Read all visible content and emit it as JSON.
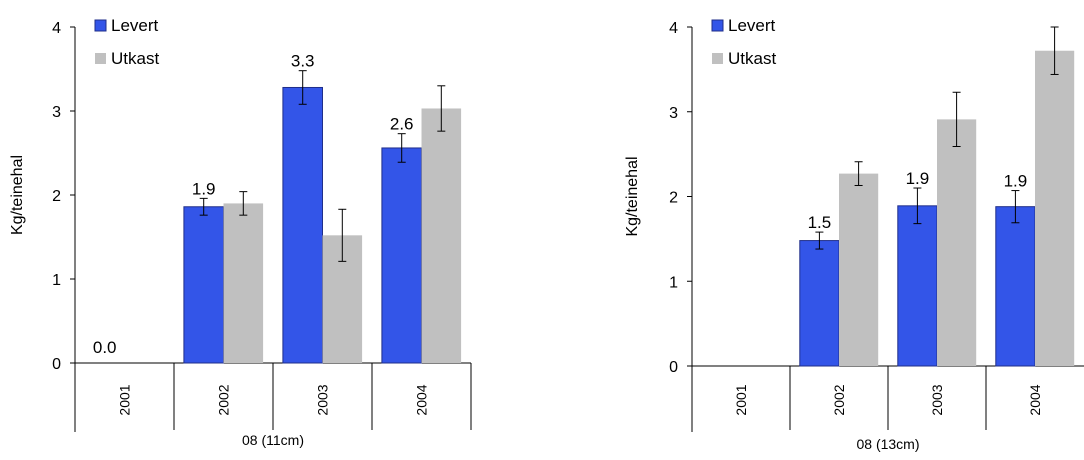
{
  "colors": {
    "levert": "#3355e8",
    "utkast": "#c0c0c0"
  },
  "chart_data": [
    {
      "type": "bar",
      "title": "",
      "xlabel": "08 (11cm)",
      "ylabel": "Kg/teinehal",
      "ylim": [
        0,
        4
      ],
      "yticks": [
        "0",
        "1",
        "2",
        "3",
        "4"
      ],
      "categories": [
        "2001",
        "2002",
        "2003",
        "2004"
      ],
      "legend_position": "top-left",
      "series": [
        {
          "name": "Levert",
          "values": [
            0,
            1.86,
            3.28,
            2.56
          ],
          "errors": [
            0,
            0.1,
            0.2,
            0.17
          ],
          "labels": [
            "0.0",
            "1.9",
            "3.3",
            "2.6"
          ]
        },
        {
          "name": "Utkast",
          "values": [
            null,
            1.9,
            1.52,
            3.03
          ],
          "errors": [
            null,
            0.14,
            0.31,
            0.27
          ]
        }
      ]
    },
    {
      "type": "bar",
      "title": "",
      "xlabel": "08 (13cm)",
      "ylabel": "Kg/teinehal",
      "ylim": [
        0,
        4
      ],
      "yticks": [
        "0",
        "1",
        "2",
        "3",
        "4"
      ],
      "categories": [
        "2001",
        "2002",
        "2003",
        "2004"
      ],
      "legend_position": "top-left",
      "series": [
        {
          "name": "Levert",
          "values": [
            null,
            1.48,
            1.89,
            1.88
          ],
          "errors": [
            null,
            0.1,
            0.21,
            0.19
          ],
          "labels": [
            "",
            "1.5",
            "1.9",
            "1.9"
          ]
        },
        {
          "name": "Utkast",
          "values": [
            null,
            2.27,
            2.91,
            3.72
          ],
          "errors": [
            null,
            0.14,
            0.32,
            0.28
          ]
        }
      ]
    }
  ]
}
